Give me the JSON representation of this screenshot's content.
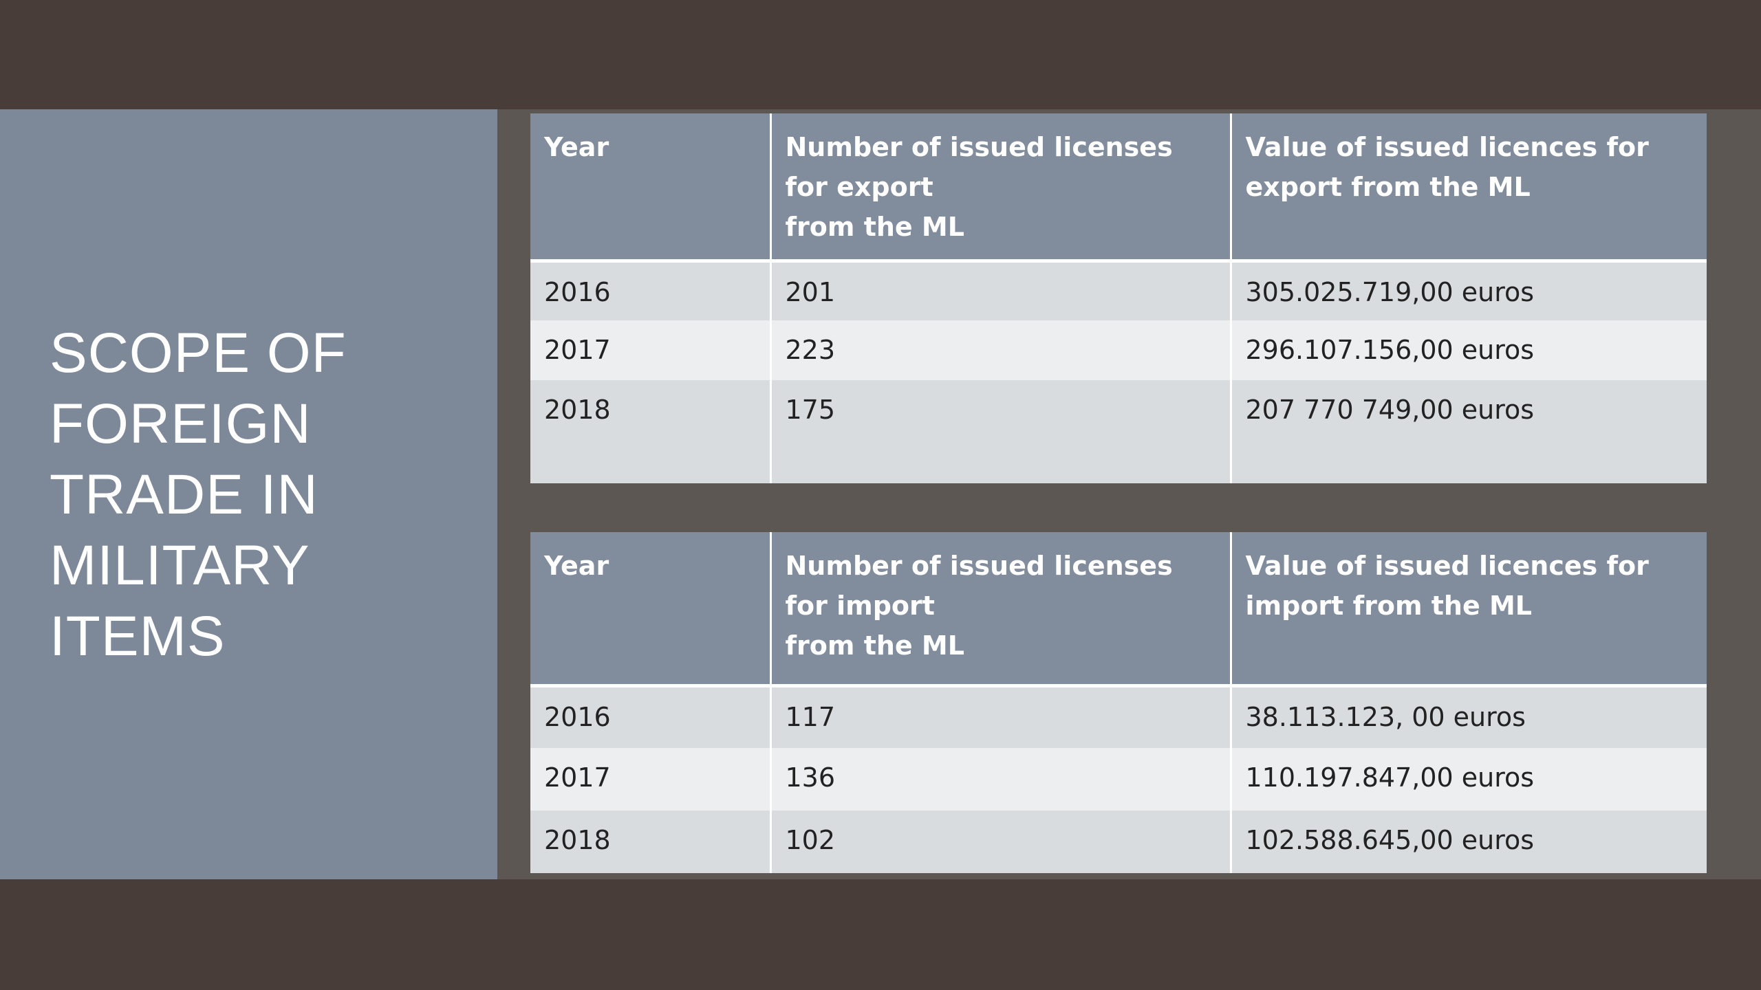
{
  "slide": {
    "title": "SCOPE OF FOREIGN TRADE IN MILITARY ITEMS"
  },
  "export_table": {
    "headers": [
      "Year",
      "Number of issued licenses for export\n from the ML",
      "Value of issued licences for export from the ML"
    ],
    "rows": [
      [
        "2016",
        "201",
        "305.025.719,00 euros"
      ],
      [
        "2017",
        "223",
        "296.107.156,00 euros"
      ],
      [
        "2018",
        "175",
        "207 770 749,00 euros"
      ]
    ]
  },
  "import_table": {
    "headers": [
      "Year",
      "Number of issued licenses for import\nfrom the ML",
      "Value of issued licences for import from the ML"
    ],
    "rows": [
      [
        "2016",
        "117",
        "38.113.123, 00 euros"
      ],
      [
        "2017",
        "136",
        "110.197.847,00 euros"
      ],
      [
        "2018",
        "102",
        "102.588.645,00 euros"
      ]
    ]
  },
  "colors": {
    "background": "#483d39",
    "title_panel": "#7d8898",
    "table_header": "#818c9c",
    "row_shade_1": "#d9dcdf",
    "row_shade_2": "#eceeef"
  }
}
